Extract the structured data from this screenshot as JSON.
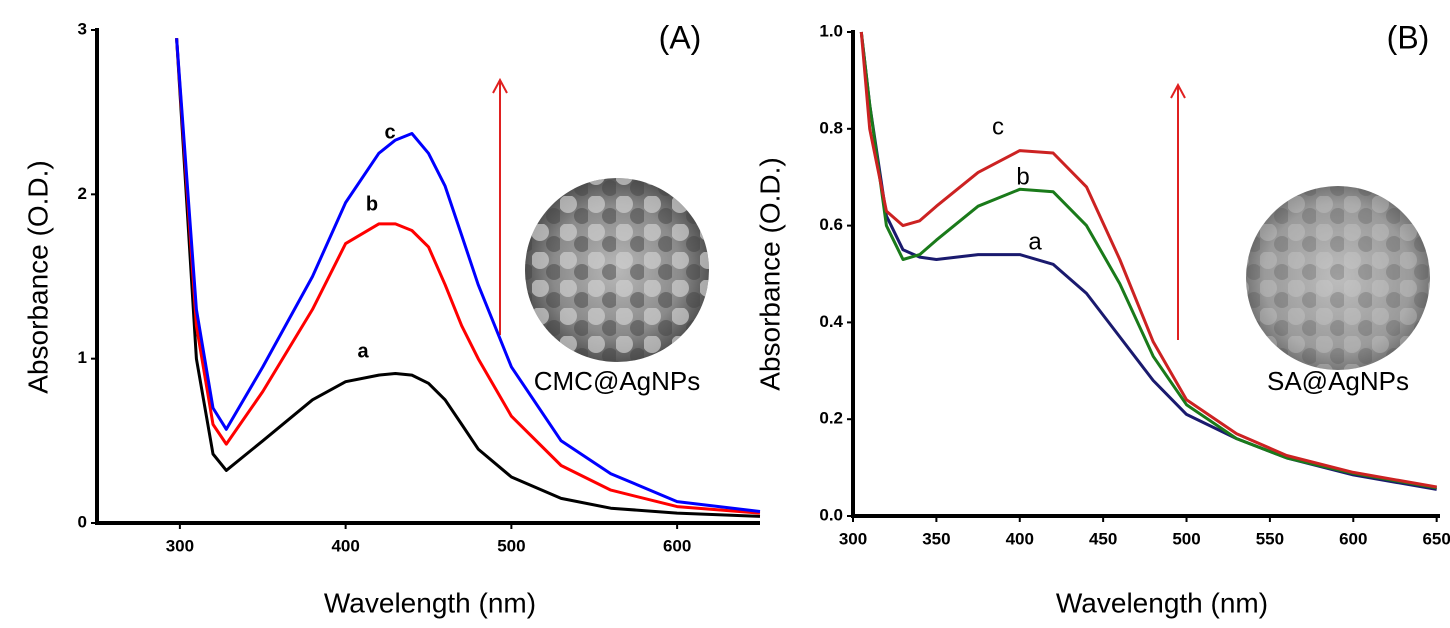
{
  "chart_data": [
    {
      "type": "line",
      "panel_label": "(A)",
      "inset_label": "CMC@AgNPs",
      "x_label": "Wavelength (nm)",
      "y_label": "Absorbance (O.D.)",
      "x": [
        298,
        310,
        320,
        328,
        350,
        380,
        400,
        420,
        430,
        440,
        450,
        460,
        470,
        480,
        500,
        530,
        560,
        600,
        650
      ],
      "series": [
        {
          "name": "a",
          "color": "#000000",
          "values": [
            2.95,
            1.0,
            0.42,
            0.32,
            0.5,
            0.75,
            0.86,
            0.9,
            0.91,
            0.9,
            0.85,
            0.75,
            0.6,
            0.45,
            0.28,
            0.15,
            0.09,
            0.06,
            0.04
          ]
        },
        {
          "name": "b",
          "color": "#ff0000",
          "values": [
            2.95,
            1.2,
            0.6,
            0.48,
            0.8,
            1.3,
            1.7,
            1.82,
            1.82,
            1.78,
            1.68,
            1.45,
            1.2,
            1.0,
            0.65,
            0.35,
            0.2,
            0.1,
            0.06
          ]
        },
        {
          "name": "c",
          "color": "#0000ff",
          "values": [
            2.95,
            1.3,
            0.7,
            0.57,
            0.95,
            1.5,
            1.95,
            2.25,
            2.33,
            2.37,
            2.25,
            2.05,
            1.75,
            1.45,
            0.95,
            0.5,
            0.3,
            0.13,
            0.07
          ]
        }
      ],
      "xlim": [
        250,
        650
      ],
      "ylim": [
        0,
        3
      ],
      "xticks": [
        300,
        400,
        500,
        600
      ],
      "yticks": [
        0,
        1,
        2,
        3
      ]
    },
    {
      "type": "line",
      "panel_label": "(B)",
      "inset_label": "SA@AgNPs",
      "x_label": "Wavelength (nm)",
      "y_label": "Absorbance (O.D.)",
      "x": [
        305,
        310,
        320,
        330,
        340,
        350,
        375,
        400,
        420,
        440,
        460,
        480,
        500,
        530,
        560,
        600,
        650
      ],
      "series": [
        {
          "name": "a",
          "color": "#1a1a6e",
          "values": [
            1.0,
            0.85,
            0.62,
            0.55,
            0.535,
            0.53,
            0.54,
            0.54,
            0.52,
            0.46,
            0.37,
            0.28,
            0.21,
            0.16,
            0.12,
            0.085,
            0.055
          ]
        },
        {
          "name": "b",
          "color": "#1a7a1a",
          "values": [
            1.0,
            0.85,
            0.6,
            0.53,
            0.54,
            0.57,
            0.64,
            0.675,
            0.67,
            0.6,
            0.48,
            0.33,
            0.23,
            0.16,
            0.12,
            0.088,
            0.058
          ]
        },
        {
          "name": "c",
          "color": "#cc2222",
          "values": [
            1.0,
            0.8,
            0.63,
            0.6,
            0.61,
            0.64,
            0.71,
            0.755,
            0.75,
            0.68,
            0.53,
            0.36,
            0.24,
            0.17,
            0.125,
            0.09,
            0.06
          ]
        }
      ],
      "xlim": [
        300,
        652
      ],
      "ylim": [
        0,
        1
      ],
      "xticks": [
        300,
        350,
        400,
        450,
        500,
        550,
        600,
        650
      ],
      "yticks": [
        {
          "value": 0,
          "label": "0.0"
        },
        0.2,
        0.4,
        0.6,
        0.8,
        {
          "value": 1,
          "label": "1.0"
        }
      ]
    }
  ]
}
